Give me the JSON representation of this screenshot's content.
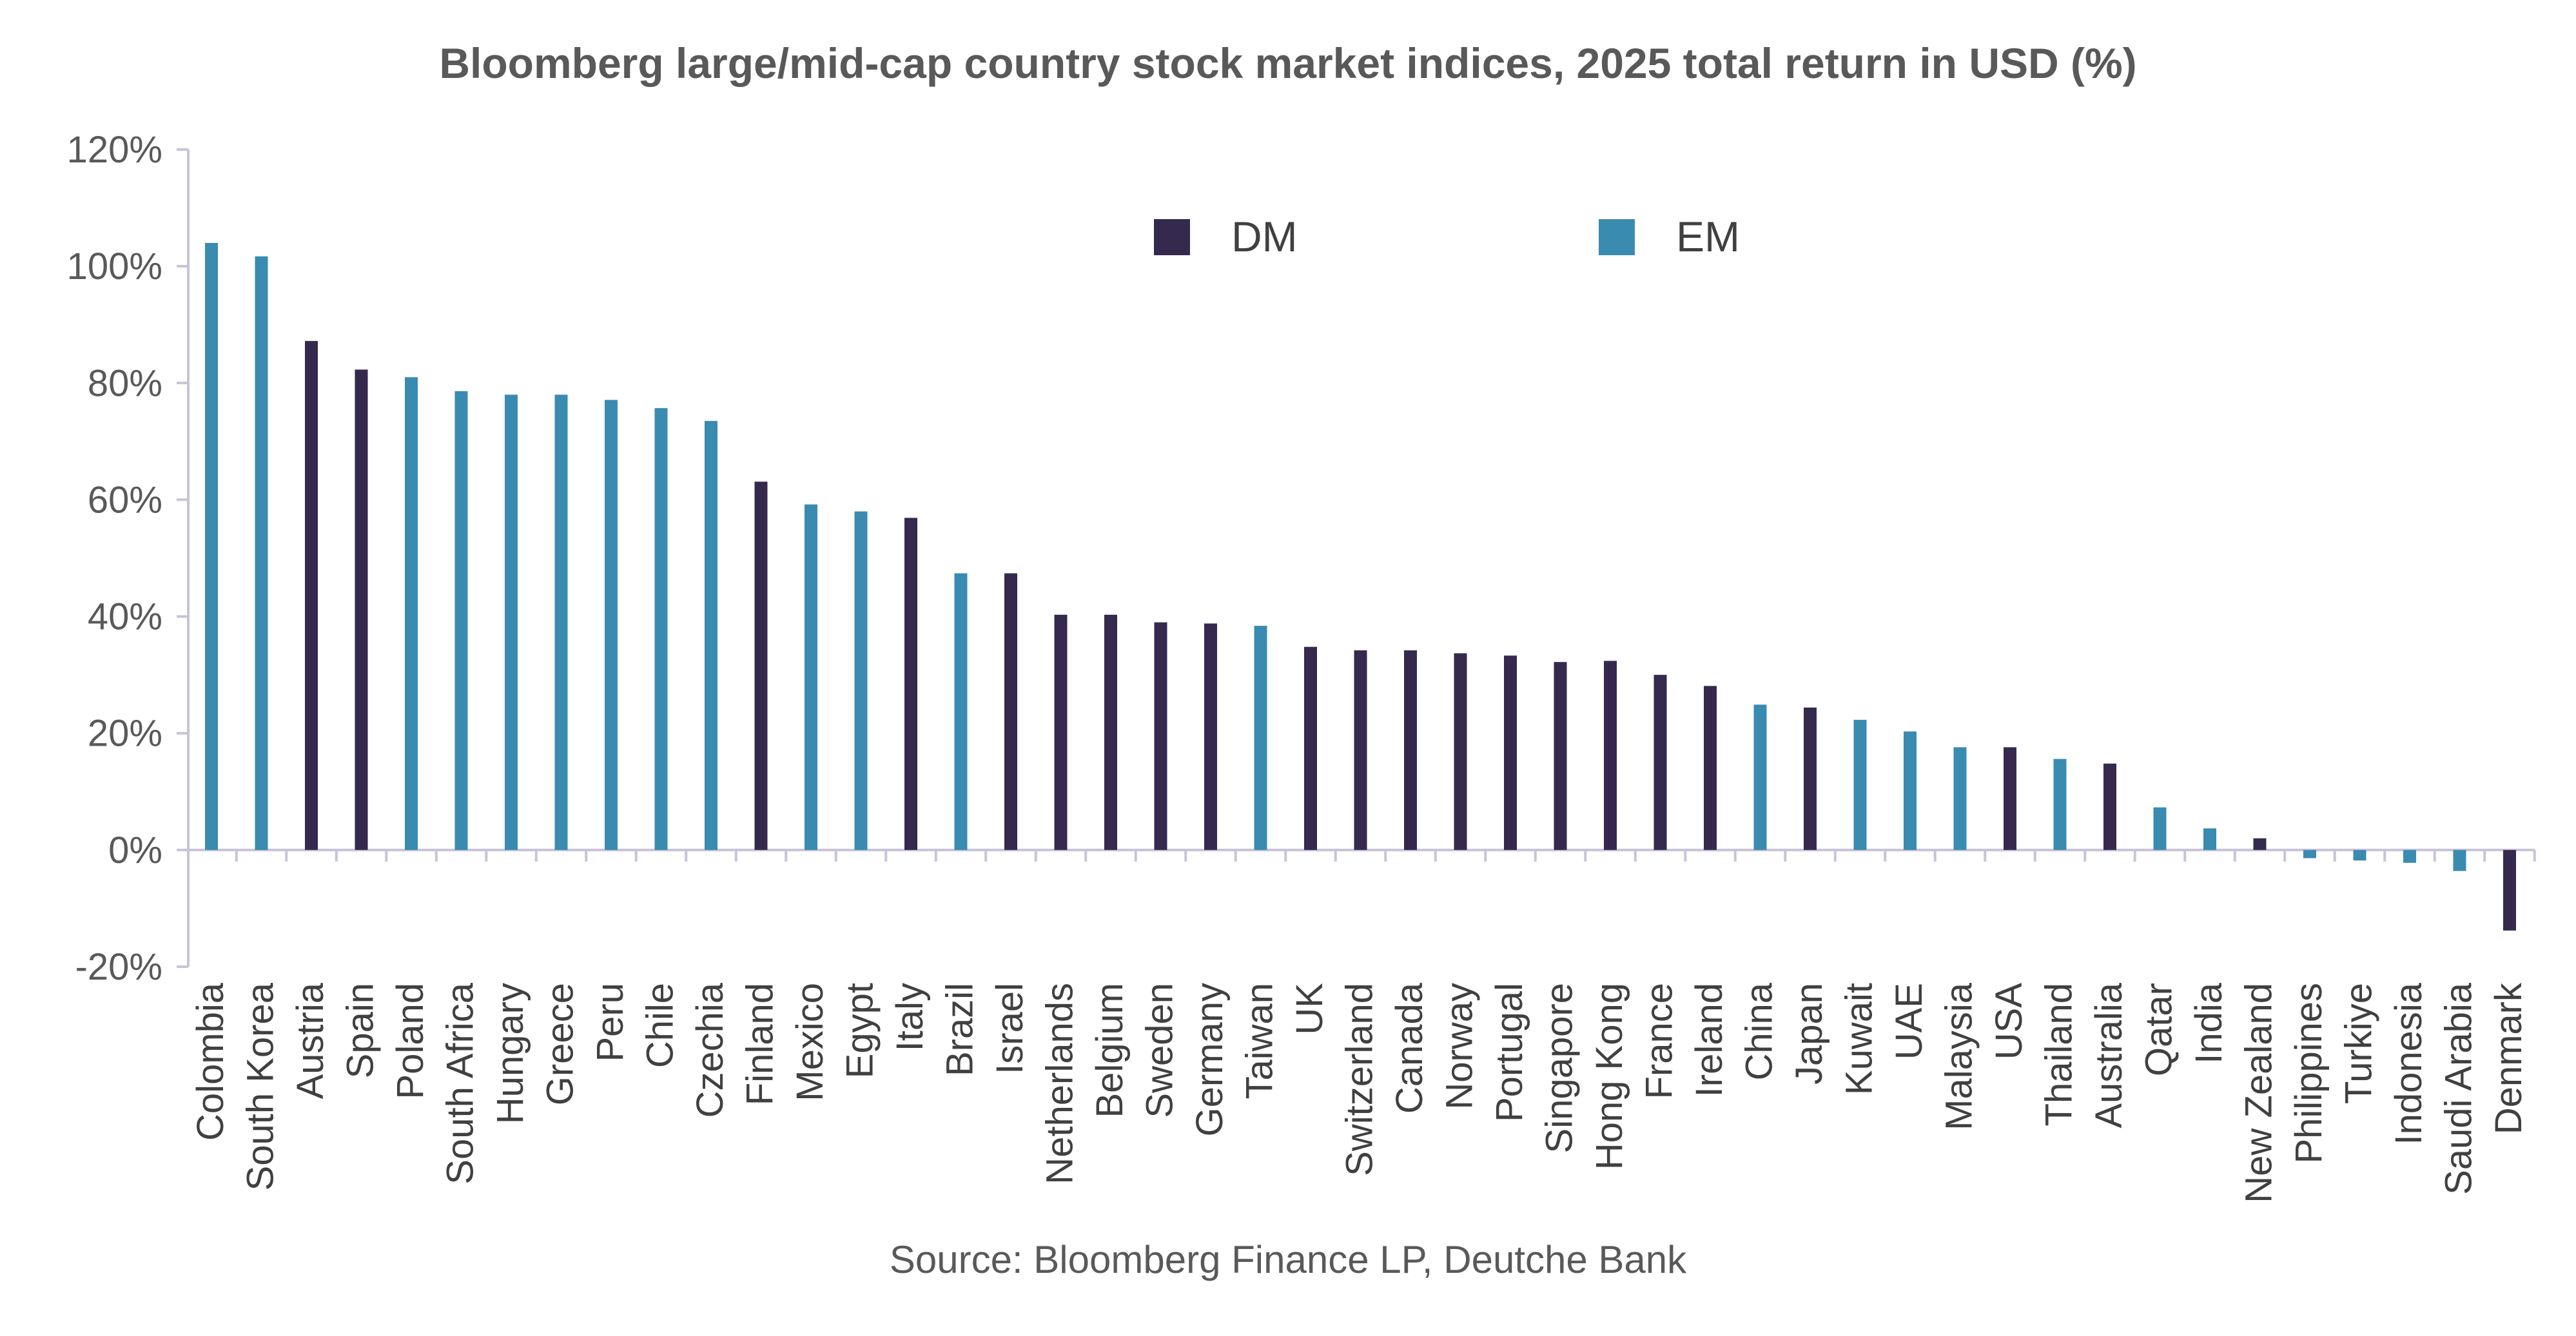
{
  "chart_data": {
    "type": "bar",
    "title": "Bloomberg large/mid-cap country stock market indices, 2025 total return in USD (%)",
    "source": "Source: Bloomberg Finance LP, Deutche Bank",
    "xlabel": "",
    "ylabel": "",
    "ylim": [
      -20,
      120
    ],
    "yticks": [
      -20,
      0,
      20,
      40,
      60,
      80,
      100,
      120
    ],
    "ytick_labels": [
      "-20%",
      "0%",
      "20%",
      "40%",
      "60%",
      "80%",
      "100%",
      "120%"
    ],
    "legend": {
      "position": "top-center",
      "entries": [
        {
          "key": "DM",
          "label": "DM",
          "color": "#35294e"
        },
        {
          "key": "EM",
          "label": "EM",
          "color": "#3a8bb0"
        }
      ]
    },
    "categories": [
      "Colombia",
      "South Korea",
      "Austria",
      "Spain",
      "Poland",
      "South Africa",
      "Hungary",
      "Greece",
      "Peru",
      "Chile",
      "Czechia",
      "Finland",
      "Mexico",
      "Egypt",
      "Italy",
      "Brazil",
      "Israel",
      "Netherlands",
      "Belgium",
      "Sweden",
      "Germany",
      "Taiwan",
      "UK",
      "Switzerland",
      "Canada",
      "Norway",
      "Portugal",
      "Singapore",
      "Hong Kong",
      "France",
      "Ireland",
      "China",
      "Japan",
      "Kuwait",
      "UAE",
      "Malaysia",
      "USA",
      "Thailand",
      "Australia",
      "Qatar",
      "India",
      "New Zealand",
      "Philippines",
      "Turkiye",
      "Indonesia",
      "Saudi Arabia",
      "Denmark"
    ],
    "values": [
      104.0,
      101.7,
      87.2,
      82.3,
      81.0,
      78.6,
      78.0,
      78.0,
      77.1,
      75.7,
      73.5,
      63.1,
      59.2,
      58.0,
      56.9,
      47.4,
      47.4,
      40.3,
      40.3,
      39.0,
      38.8,
      38.4,
      34.8,
      34.2,
      34.2,
      33.7,
      33.3,
      32.2,
      32.4,
      30.0,
      28.1,
      24.9,
      24.4,
      22.3,
      20.3,
      17.6,
      17.6,
      15.6,
      14.8,
      7.3,
      3.7,
      2.0,
      -1.4,
      -1.8,
      -2.2,
      -3.6,
      -13.8
    ],
    "groups": [
      "EM",
      "EM",
      "DM",
      "DM",
      "EM",
      "EM",
      "EM",
      "EM",
      "EM",
      "EM",
      "EM",
      "DM",
      "EM",
      "EM",
      "DM",
      "EM",
      "DM",
      "DM",
      "DM",
      "DM",
      "DM",
      "EM",
      "DM",
      "DM",
      "DM",
      "DM",
      "DM",
      "DM",
      "DM",
      "DM",
      "DM",
      "EM",
      "DM",
      "EM",
      "EM",
      "EM",
      "DM",
      "EM",
      "DM",
      "EM",
      "EM",
      "DM",
      "EM",
      "EM",
      "EM",
      "EM",
      "DM"
    ],
    "axis_color": "#c9c3d9",
    "tick_text_color": "#595959"
  }
}
